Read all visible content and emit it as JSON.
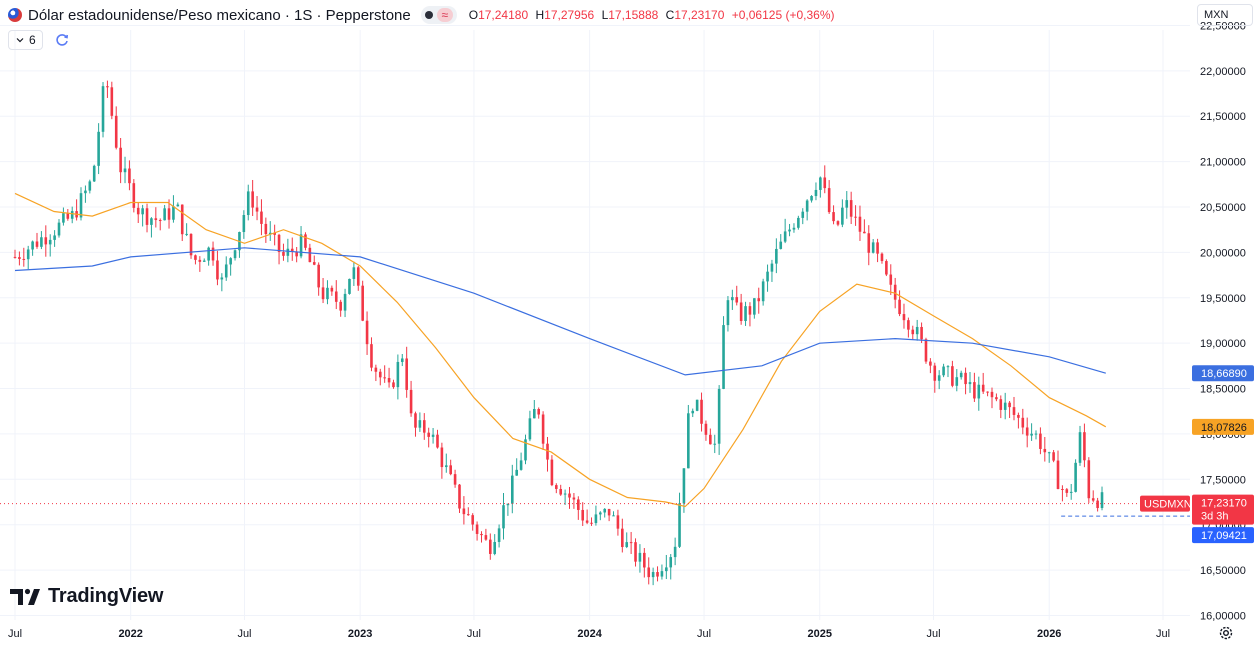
{
  "header": {
    "title": "Dólar estadounidense/Peso mexicano · 1S · Pepperstone",
    "approx_symbol": "≈",
    "ohlc": {
      "o_label": "O",
      "o": "17,24180",
      "h_label": "H",
      "h": "17,27956",
      "l_label": "L",
      "l": "17,15888",
      "c_label": "C",
      "c": "17,23170",
      "change": "+0,06125 (+0,36%)"
    },
    "currency": "MXN"
  },
  "controls": {
    "indicators_count": "6"
  },
  "branding": {
    "logo_text": "TradingView"
  },
  "colors": {
    "up": "#26a69a",
    "down": "#f23645",
    "ma_orange": "#f7a325",
    "ma_blue": "#3b6fe0",
    "grid": "#f0f3fa",
    "axis_text": "#131722"
  },
  "chart_data": {
    "type": "candlestick",
    "instrument": "USDMXN",
    "timeframe": "1S",
    "ylim": [
      15.95,
      22.45
    ],
    "y_ticks": [
      "16,00000",
      "16,50000",
      "17,00000",
      "17,50000",
      "18,00000",
      "18,50000",
      "19,00000",
      "19,50000",
      "20,00000",
      "20,50000",
      "21,00000",
      "21,50000",
      "22,00000",
      "22,50000"
    ],
    "x_ticks": [
      "Jul",
      "2022",
      "Jul",
      "2023",
      "Jul",
      "2024",
      "Jul",
      "2025",
      "Jul",
      "2026",
      "Jul"
    ],
    "close_path": [
      [
        "2021-07-01",
        19.95
      ],
      [
        "2021-08-01",
        20.1
      ],
      [
        "2021-09-01",
        20.25
      ],
      [
        "2021-10-01",
        20.4
      ],
      [
        "2021-11-01",
        20.8
      ],
      [
        "2021-11-22",
        21.95
      ],
      [
        "2021-12-15",
        20.95
      ],
      [
        "2022-01-15",
        20.45
      ],
      [
        "2022-02-15",
        20.35
      ],
      [
        "2022-03-15",
        20.5
      ],
      [
        "2022-04-10",
        19.9
      ],
      [
        "2022-05-10",
        20.05
      ],
      [
        "2022-05-25",
        19.65
      ],
      [
        "2022-06-20",
        20.2
      ],
      [
        "2022-07-10",
        20.65
      ],
      [
        "2022-08-01",
        20.25
      ],
      [
        "2022-09-01",
        19.95
      ],
      [
        "2022-10-01",
        20.1
      ],
      [
        "2022-11-01",
        19.55
      ],
      [
        "2022-12-01",
        19.45
      ],
      [
        "2022-12-20",
        19.85
      ],
      [
        "2023-01-20",
        18.8
      ],
      [
        "2023-02-15",
        18.45
      ],
      [
        "2023-03-10",
        18.9
      ],
      [
        "2023-03-25",
        18.05
      ],
      [
        "2023-04-20",
        18.05
      ],
      [
        "2023-05-15",
        17.65
      ],
      [
        "2023-06-10",
        17.2
      ],
      [
        "2023-07-25",
        16.75
      ],
      [
        "2023-08-10",
        17.05
      ],
      [
        "2023-09-01",
        17.45
      ],
      [
        "2023-10-10",
        18.35
      ],
      [
        "2023-10-30",
        17.55
      ],
      [
        "2023-12-01",
        17.3
      ],
      [
        "2023-12-31",
        17.0
      ],
      [
        "2024-02-01",
        17.15
      ],
      [
        "2024-03-01",
        16.75
      ],
      [
        "2024-04-10",
        16.45
      ],
      [
        "2024-05-15",
        16.75
      ],
      [
        "2024-06-10",
        18.4
      ],
      [
        "2024-06-25",
        18.2
      ],
      [
        "2024-07-20",
        17.85
      ],
      [
        "2024-08-05",
        19.6
      ],
      [
        "2024-08-25",
        19.3
      ],
      [
        "2024-09-20",
        19.4
      ],
      [
        "2024-10-25",
        20.0
      ],
      [
        "2024-11-25",
        20.4
      ],
      [
        "2025-01-01",
        20.85
      ],
      [
        "2025-01-25",
        20.2
      ],
      [
        "2025-02-10",
        20.55
      ],
      [
        "2025-03-10",
        20.2
      ],
      [
        "2025-04-05",
        19.9
      ],
      [
        "2025-04-25",
        19.55
      ],
      [
        "2025-06-01",
        19.15
      ],
      [
        "2025-07-01",
        18.7
      ],
      [
        "2025-08-10",
        18.6
      ],
      [
        "2025-09-10",
        18.45
      ],
      [
        "2025-10-15",
        18.35
      ],
      [
        "2025-11-15",
        18.15
      ],
      [
        "2025-12-15",
        17.95
      ],
      [
        "2026-01-15",
        17.5
      ],
      [
        "2026-02-01",
        17.25
      ],
      [
        "2026-02-20",
        18.0
      ],
      [
        "2026-03-05",
        17.35
      ],
      [
        "2026-04-01",
        17.23
      ]
    ],
    "series": [
      {
        "name": "orange",
        "points": [
          [
            "2021-07-01",
            20.65
          ],
          [
            "2021-09-01",
            20.45
          ],
          [
            "2021-11-01",
            20.4
          ],
          [
            "2022-01-01",
            20.55
          ],
          [
            "2022-03-01",
            20.55
          ],
          [
            "2022-05-01",
            20.25
          ],
          [
            "2022-07-01",
            20.1
          ],
          [
            "2022-09-01",
            20.25
          ],
          [
            "2022-11-01",
            20.1
          ],
          [
            "2023-01-01",
            19.85
          ],
          [
            "2023-03-01",
            19.45
          ],
          [
            "2023-05-01",
            18.95
          ],
          [
            "2023-07-01",
            18.4
          ],
          [
            "2023-09-01",
            17.95
          ],
          [
            "2023-11-01",
            17.8
          ],
          [
            "2024-01-01",
            17.5
          ],
          [
            "2024-03-01",
            17.3
          ],
          [
            "2024-05-01",
            17.25
          ],
          [
            "2024-06-01",
            17.2
          ],
          [
            "2024-07-01",
            17.4
          ],
          [
            "2024-09-01",
            18.05
          ],
          [
            "2024-11-01",
            18.8
          ],
          [
            "2025-01-01",
            19.35
          ],
          [
            "2025-03-01",
            19.65
          ],
          [
            "2025-05-01",
            19.55
          ],
          [
            "2025-07-01",
            19.3
          ],
          [
            "2025-09-01",
            19.05
          ],
          [
            "2025-11-01",
            18.75
          ],
          [
            "2026-01-01",
            18.4
          ],
          [
            "2026-03-01",
            18.2
          ],
          [
            "2026-04-01",
            18.07826
          ]
        ]
      },
      {
        "name": "blue",
        "points": [
          [
            "2021-07-01",
            19.8
          ],
          [
            "2021-11-01",
            19.85
          ],
          [
            "2022-01-01",
            19.95
          ],
          [
            "2022-07-01",
            20.05
          ],
          [
            "2023-01-01",
            19.95
          ],
          [
            "2023-07-01",
            19.55
          ],
          [
            "2024-01-01",
            19.05
          ],
          [
            "2024-06-01",
            18.65
          ],
          [
            "2024-10-01",
            18.75
          ],
          [
            "2025-01-01",
            19.0
          ],
          [
            "2025-05-01",
            19.05
          ],
          [
            "2025-09-01",
            19.0
          ],
          [
            "2026-01-01",
            18.85
          ],
          [
            "2026-04-01",
            18.6689
          ]
        ]
      }
    ],
    "last_price": {
      "symbol": "USDMXN",
      "value": "17,23170",
      "value_num": 17.2317,
      "countdown": "3d 3h"
    },
    "labels": [
      {
        "series": "blue",
        "value": "18,66890",
        "value_num": 18.6689
      },
      {
        "series": "orange",
        "value": "18,07826",
        "value_num": 18.07826
      },
      {
        "series": "low",
        "value": "17,09421",
        "value_num": 17.09421
      }
    ]
  }
}
